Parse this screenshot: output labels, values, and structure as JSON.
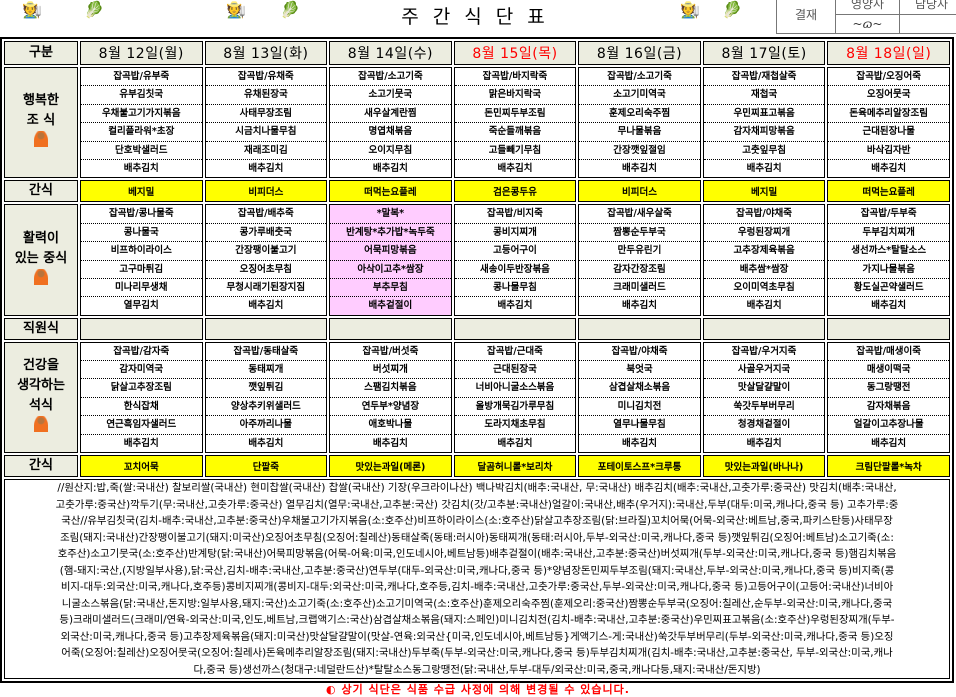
{
  "title": "주간식단표",
  "approval": {
    "label": "결재",
    "col1": "영양사",
    "col2": "담당자",
    "signature": "signature"
  },
  "header_label": "구분",
  "row_labels": {
    "breakfast": [
      "행복한",
      "조 식"
    ],
    "snack": "간식",
    "lunch": [
      "활력이",
      "있는 중식"
    ],
    "staff": "직원식",
    "dinner": [
      "건강을",
      "생각하는",
      "석식"
    ]
  },
  "colors": {
    "snack_bg": "#ffff00",
    "special_bg": "#ffccff",
    "label_bg": "#ecede0",
    "holiday": "#ff0000"
  },
  "days": [
    {
      "date": "8월 12일(월)",
      "holiday": false,
      "special_lunch": false,
      "breakfast": [
        "잡곡밥/유부죽",
        "유부김칫국",
        "우채불고기가지볶음",
        "컬리플라워*초장",
        "단호박샐러드",
        "배추김치"
      ],
      "snack1": "베지밀",
      "lunch": [
        "잡곡밥/콩나물죽",
        "콩나물국",
        "비프하이라이스",
        "고구마튀김",
        "미나리무생채",
        "열무김치"
      ],
      "dinner": [
        "잡곡밥/감자죽",
        "감자미역국",
        "닭살고추장조림",
        "한식잡채",
        "연근흑임자샐러드",
        "배추김치"
      ],
      "snack2": "꼬치어묵"
    },
    {
      "date": "8월 13일(화)",
      "holiday": false,
      "special_lunch": false,
      "breakfast": [
        "잡곡밥/유채죽",
        "유채된장국",
        "사태무장조림",
        "시금치나물무침",
        "재래조미김",
        "배추김치"
      ],
      "snack1": "비피더스",
      "lunch": [
        "잡곡밥/배추죽",
        "콩가루배춧국",
        "간장팽이불고기",
        "오징어초무침",
        "무청시래기된장지짐",
        "배추김치"
      ],
      "dinner": [
        "잡곡밥/동태살죽",
        "동태찌개",
        "깻잎튀김",
        "양상추키위샐러드",
        "아주까리나물",
        "배추김치"
      ],
      "snack2": "단팥죽"
    },
    {
      "date": "8월 14일(수)",
      "holiday": false,
      "special_lunch": true,
      "breakfast": [
        "잡곡밥/소고기죽",
        "소고기뭇국",
        "새우살계란찜",
        "명엽채볶음",
        "오이지무침",
        "배추김치"
      ],
      "snack1": "떠먹는요플레",
      "lunch": [
        "*말복*",
        "반계탕*추가밥*녹두죽",
        "어묵피망볶음",
        "아삭이고추*쌈장",
        "부추무침",
        "배추겉절이"
      ],
      "dinner": [
        "잡곡밥/버섯죽",
        "버섯찌개",
        "스팸김치볶음",
        "연두부*양념장",
        "애호박나물",
        "배추김치"
      ],
      "snack2": "맛있는과일(메론)"
    },
    {
      "date": "8월 15일(목)",
      "holiday": true,
      "special_lunch": false,
      "breakfast": [
        "잡곡밥/바지락죽",
        "맑은바지락국",
        "돈민찌두부조림",
        "죽순들깨볶음",
        "고들빼기무침",
        "배추김치"
      ],
      "snack1": "검은콩두유",
      "lunch": [
        "잡곡밥/비지죽",
        "콩비지찌개",
        "고등어구이",
        "새송이두반장볶음",
        "콩나물무침",
        "배추김치"
      ],
      "dinner": [
        "잡곡밥/근대죽",
        "근대된장국",
        "너비아니굴소스볶음",
        "올방개묵김가루무침",
        "도라지채초무침",
        "배추김치"
      ],
      "snack2": "달곰허니롤*보리차"
    },
    {
      "date": "8월 16일(금)",
      "holiday": false,
      "special_lunch": false,
      "breakfast": [
        "잡곡밥/소고기죽",
        "소고기미역국",
        "훈제오리숙주찜",
        "무나물볶음",
        "간장깻잎절임",
        "배추김치"
      ],
      "snack1": "비피더스",
      "lunch": [
        "잡곡밥/새우살죽",
        "짬뽕순두부국",
        "만두유린기",
        "감자간장조림",
        "크래미샐러드",
        "배추김치"
      ],
      "dinner": [
        "잡곡밥/야채죽",
        "북엇국",
        "삼겹살채소볶음",
        "미니김치전",
        "열무나물무침",
        "배추김치"
      ],
      "snack2": "포테이토스프*크루통"
    },
    {
      "date": "8월 17일(토)",
      "holiday": false,
      "special_lunch": false,
      "breakfast": [
        "잡곡밥/재첩살죽",
        "재첩국",
        "우민찌표고볶음",
        "감자채피망볶음",
        "고춧잎무침",
        "배추김치"
      ],
      "snack1": "베지밀",
      "lunch": [
        "잡곡밥/야채죽",
        "우렁된장찌개",
        "고추장제육볶음",
        "배추쌈*쌈장",
        "오이미역초무침",
        "배추김치"
      ],
      "dinner": [
        "잡곡밥/우거지죽",
        "사골우거지국",
        "맛살달걀말이",
        "쑥갓두부버무리",
        "청경채겉절이",
        "배추김치"
      ],
      "snack2": "맛있는과일(바나나)"
    },
    {
      "date": "8월 18일(일)",
      "holiday": true,
      "special_lunch": false,
      "breakfast": [
        "잡곡밥/오징어죽",
        "오징어뭇국",
        "돈육메추리알장조림",
        "근대된장나물",
        "바삭김자반",
        "배추김치"
      ],
      "snack1": "떠먹는요플레",
      "lunch": [
        "잡곡밥/두부죽",
        "두부김치찌개",
        "생선까스*탈탈소스",
        "가지나물볶음",
        "황도실곤약샐러드",
        "배추김치"
      ],
      "dinner": [
        "잡곡밥/매생이죽",
        "매생이떡국",
        "동그랑땡전",
        "감자채볶음",
        "얼갈이고추장나물",
        "배추김치"
      ],
      "snack2": "크림단팥롤*녹차"
    }
  ],
  "origin_lines": [
    "//원산지:밥,죽(쌀:국내산) 찰보리쌀(국내산) 현미찹쌀(국내산) 찹쌀(국내산) 기장(우크라이나산) 백나박김치(배추:국내산, 무:국내산) 배추김치(배추:국내산,고춧가루:중국산) 맛김치(배추:국내산,",
    "고춧가루:중국산)깍두기(무:국내산,고춧가루:중국산) 열무김치(열무:국내산,고추분:국산) 갓김치(갓/고추분:국내산)얼갈이:국내산,배추(우거지):국내산,두부(대두:미국,캐나다,중국 등) 고추가루:중",
    "국산//유부김칫국(김치-배추:국내산,고추분:중국산)우채불고기가지볶음(소:호주산)비프하이라이스(소:호주산)닭살고추장조림(닭:브라질)꼬치어묵(어묵-외국산:베트남,중국,파키스탄등)사태무장",
    "조림(돼지:국내산)간장팽이불고기(돼지:미국산)오징어초무침(오징어:칠레산)동태살죽(동태:러시아)동태찌개(동태:러시아,두부-외국산:미국,캐나다,중국 등)깻잎튀김(오징어:베트남)소고기죽(소:",
    "호주산)소고기뭇국(소:호주산)반계탕(닭:국내산)어묵피망볶음(어묵-어육:미국,인도네시아,베트남등)배추겉절이(배추:국내산,고추분:중국산)버섯찌개(두부-외국산:미국,캐나다,중국 등)햄김치볶음",
    "(햄-돼지:국산,(지방일부사용),닭:국산,김치-배추:국내산,고추분:중국산)연두부(대두-외국산:미국,캐나다,중국 등)*양념장돈민찌두부조림(돼지:국내산,두부-외국산:미국,캐나다,중국 등)비지죽(콩",
    "비지-대두:외국산:미국,캐나다,호주등)콩비지찌개(콩비지-대두:외국산:미국,캐나다,호주등,김치-배추:국내산,고춧가루:중국산,두부-외국산:미국,캐나다,중국 등)고등어구이(고등어:국내산)너비아",
    "니굴소스볶음(닭:국내산,돈지방:일부사용,돼지:국산)소고기죽(소:호주산)소고기미역국(소:호주산)훈제오리숙주찜(훈제오리:중국산)짬뽕순두부국(오징어:칠레산,순두부-외국산:미국,캐나다,중국",
    "등)크래미샐러드(크래미/연육-외국산:미국,인도,베트남,크랩액기스:국산)삼겹살채소볶음(돼지:스페인)미니김치전(김치-배추:국내산,고추분:중국산)우민찌표고볶음(소:호주산)우렁된장찌개(두부-",
    "외국산:미국,캐나다,중국 등)고추장제육볶음(돼지:미국산)맛살달걀말이(맛살-연육:외국산{미국,인도네시아,베트남등}게액기스-게:국내산)쑥갓두부버무리(두부-외국산:미국,캐나다,중국 등)오징",
    "어죽(오징어:칠레산)오징어뭇국(오징어:칠레사)돈육메추리알장조림(돼지:국내산)두부죽(두부-외국산:미국,캐나다,중국 등)두부김치찌개(김치-배추:국내산,고추분:중국산, 두부-외국산:미국,캐나",
    "다,중국 등)생선까스(청대구:네덜란드산)*탈탈소스동그랑땡전(닭:국내산,두부-대두/외국산:미국,중국,캐나다등,돼지:국내산/돈지방)"
  ],
  "notice": "◐ 상기 식단은 식품 수급 사정에 의해 변경될 수 있습니다."
}
